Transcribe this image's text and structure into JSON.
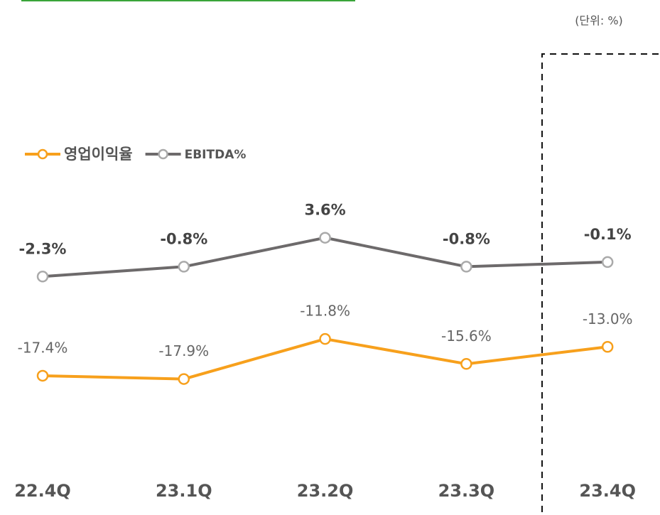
{
  "chart_data": {
    "type": "line",
    "unit_label": "(단위: %)",
    "categories": [
      "22.4Q",
      "23.1Q",
      "23.2Q",
      "23.3Q",
      "23.4Q"
    ],
    "series": [
      {
        "name": "영업이익율",
        "color": "#f7a01c",
        "values": [
          -17.4,
          -17.9,
          -11.8,
          -15.6,
          -13.0
        ],
        "value_labels": [
          "-17.4%",
          "-17.9%",
          "-11.8%",
          "-15.6%",
          "-13.0%"
        ]
      },
      {
        "name": "EBITDA%",
        "color": "#6d6a6b",
        "values": [
          -2.3,
          -0.8,
          3.6,
          -0.8,
          -0.1
        ],
        "value_labels": [
          "-2.3%",
          "-0.8%",
          "3.6%",
          "-0.8%",
          "-0.1%"
        ]
      }
    ]
  }
}
